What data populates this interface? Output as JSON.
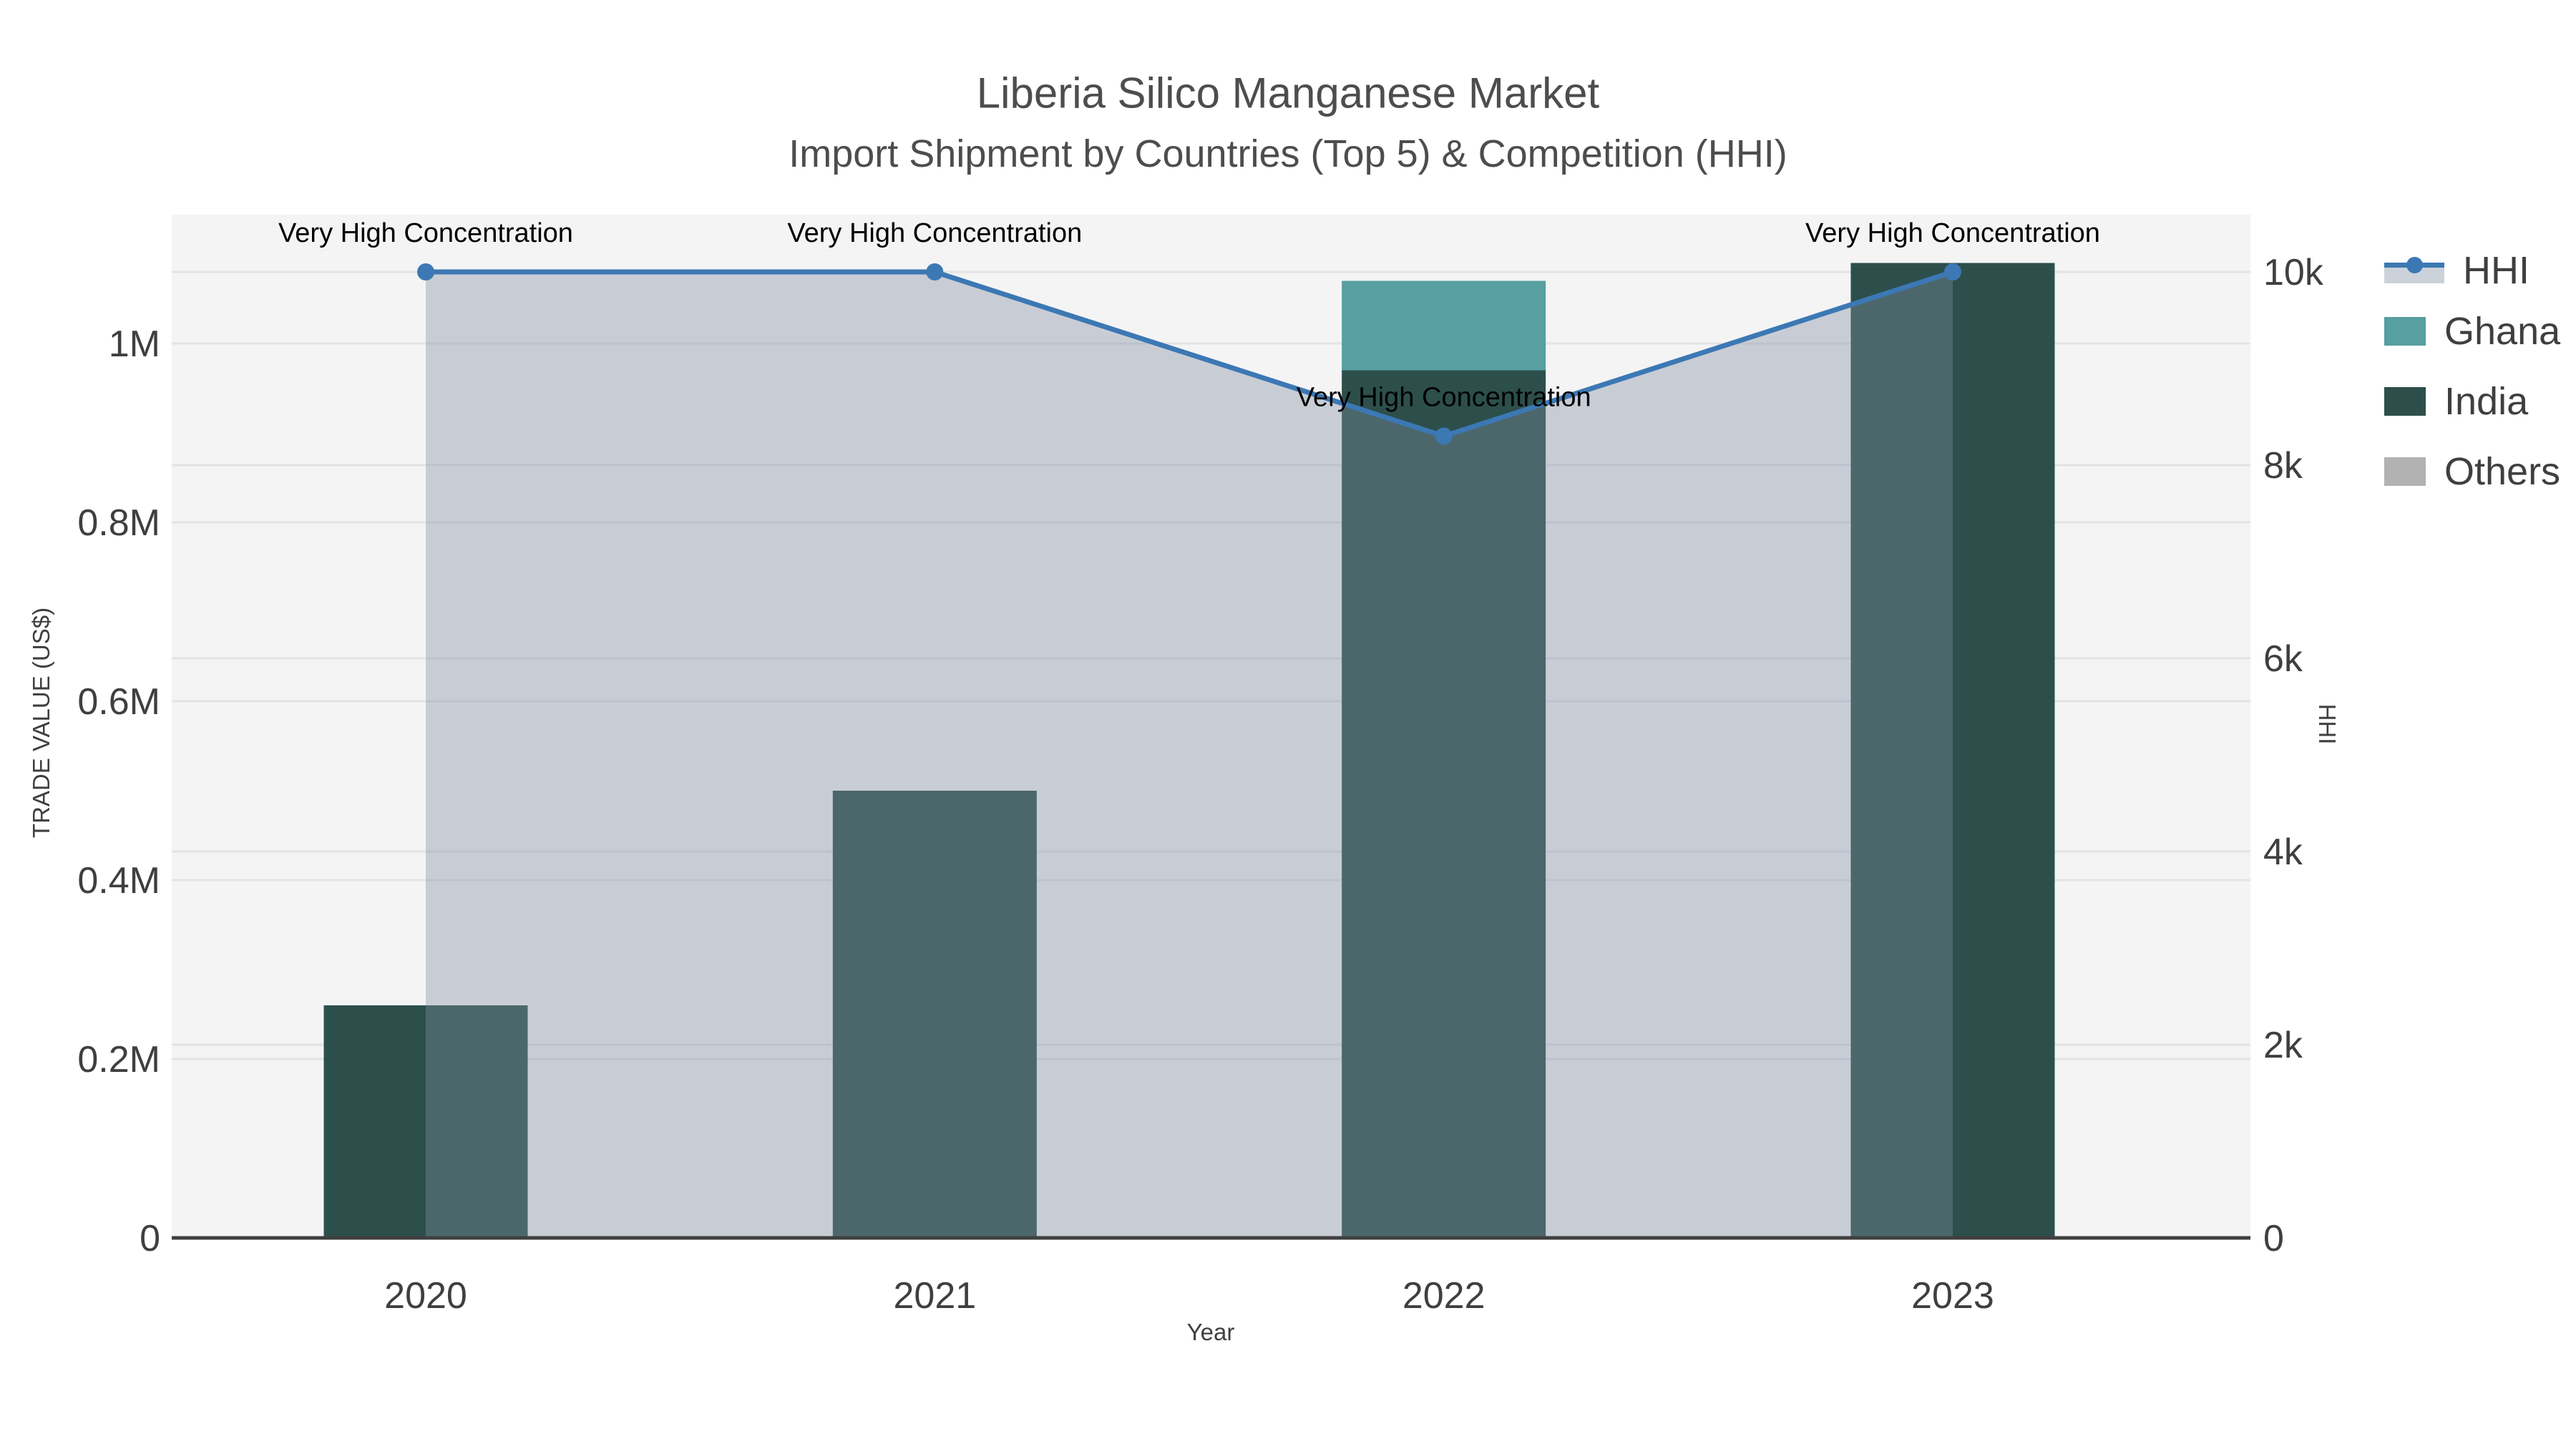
{
  "header": {
    "title": "Liberia Silico Manganese Market",
    "subtitle": "Import Shipment by Countries (Top 5) & Competition (HHI)"
  },
  "chart_data": {
    "type": "bar+line",
    "categories": [
      "2020",
      "2021",
      "2022",
      "2023"
    ],
    "series": [
      {
        "name": "HHI",
        "type": "line+area",
        "axis": "right",
        "values": [
          10000,
          10000,
          8300,
          10000
        ]
      },
      {
        "name": "Ghana",
        "type": "bar",
        "axis": "left",
        "values": [
          0,
          0,
          100000,
          0
        ]
      },
      {
        "name": "India",
        "type": "bar",
        "axis": "left",
        "values": [
          260000,
          500000,
          970000,
          1090000
        ]
      },
      {
        "name": "Others",
        "type": "bar",
        "axis": "left",
        "values": [
          0,
          0,
          0,
          0
        ]
      }
    ],
    "stack_order": [
      "India",
      "Ghana",
      "Others"
    ],
    "annotations": [
      {
        "category": "2020",
        "text": "Very High Concentration"
      },
      {
        "category": "2021",
        "text": "Very High Concentration"
      },
      {
        "category": "2022",
        "text": "Very High Concentration"
      },
      {
        "category": "2023",
        "text": "Very High Concentration"
      }
    ],
    "x_axis": {
      "label": "Year"
    },
    "left_axis": {
      "label": "TRADE VALUE (US$)",
      "tick_labels": [
        "0",
        "0.2M",
        "0.4M",
        "0.6M",
        "0.8M",
        "1M"
      ],
      "tick_values": [
        0,
        200000,
        400000,
        600000,
        800000,
        1000000
      ],
      "range": [
        0,
        1144000
      ]
    },
    "right_axis": {
      "label": "HHI",
      "tick_labels": [
        "0",
        "2k",
        "4k",
        "6k",
        "8k",
        "10k"
      ],
      "tick_values": [
        0,
        2000,
        4000,
        6000,
        8000,
        10000
      ],
      "range": [
        0,
        10590
      ]
    },
    "grid": true,
    "legend_position": "right"
  },
  "legend": {
    "items": [
      {
        "label": "HHI"
      },
      {
        "label": "Ghana"
      },
      {
        "label": "India"
      },
      {
        "label": "Others"
      }
    ]
  },
  "colors": {
    "india": "#2d4f4b",
    "ghana": "#579fa0",
    "others": "#b2b2b2",
    "hhi_line": "#3c78b4",
    "hhi_area": "rgba(130,142,160,0.38)",
    "panel": "#f4f4f5",
    "grid": "#e3e3e7",
    "axis_line": "#3f3f3f",
    "tick_text": "#3f3f3f",
    "annotation_text": "#000000"
  }
}
